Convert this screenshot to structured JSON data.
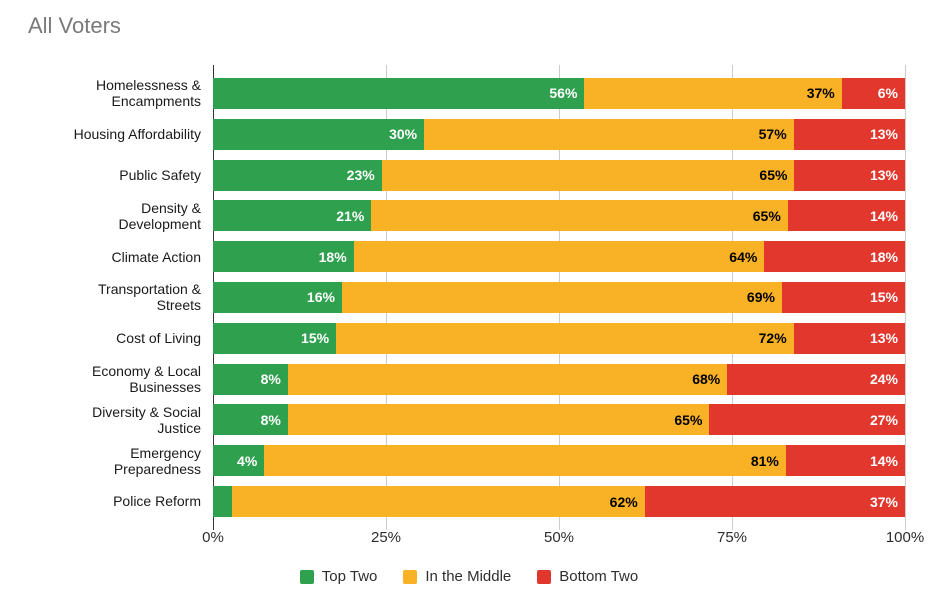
{
  "chart_data": {
    "type": "bar",
    "orientation": "horizontal",
    "stacked": true,
    "title": "All Voters",
    "categories": [
      "Homelessness & Encampments",
      "Housing Affordability",
      "Public Safety",
      "Density & Development",
      "Climate Action",
      "Transportation & Streets",
      "Cost of Living",
      "Economy & Local Businesses",
      "Diversity & Social Justice",
      "Emergency Preparedness",
      "Police Reform"
    ],
    "category_label_lines": [
      [
        "Homelessness &",
        "Encampments"
      ],
      [
        "Housing Affordability"
      ],
      [
        "Public Safety"
      ],
      [
        "Density &",
        "Development"
      ],
      [
        "Climate Action"
      ],
      [
        "Transportation &",
        "Streets"
      ],
      [
        "Cost of Living"
      ],
      [
        "Economy & Local",
        "Businesses"
      ],
      [
        "Diversity & Social",
        "Justice"
      ],
      [
        "Emergency",
        "Preparedness"
      ],
      [
        "Police Reform"
      ]
    ],
    "series": [
      {
        "name": "Top Two",
        "color": "#2FA04E",
        "label_color": "#FFFFFF",
        "values": [
          56,
          30,
          23,
          21,
          18,
          16,
          15,
          8,
          8,
          4,
          2
        ]
      },
      {
        "name": "In the Middle",
        "color": "#F9B226",
        "label_color": "#000000",
        "values": [
          37,
          57,
          65,
          65,
          64,
          69,
          72,
          68,
          65,
          81,
          62
        ]
      },
      {
        "name": "Bottom Two",
        "color": "#E2372D",
        "label_color": "#FFFFFF",
        "values": [
          6,
          13,
          13,
          14,
          18,
          15,
          13,
          24,
          27,
          14,
          37
        ]
      }
    ],
    "value_suffix": "%",
    "xlim": [
      0,
      100
    ],
    "x_ticks": [
      "0%",
      "25%",
      "50%",
      "75%",
      "100%"
    ],
    "grid": true,
    "legend_position": "bottom"
  },
  "styles": {
    "title_color": "#7A7A7A",
    "axis_text_color": "#2E2E2E",
    "gridline_color": "#CCCCCC",
    "axis_line_color": "#333333",
    "background": "#FFFFFF"
  }
}
